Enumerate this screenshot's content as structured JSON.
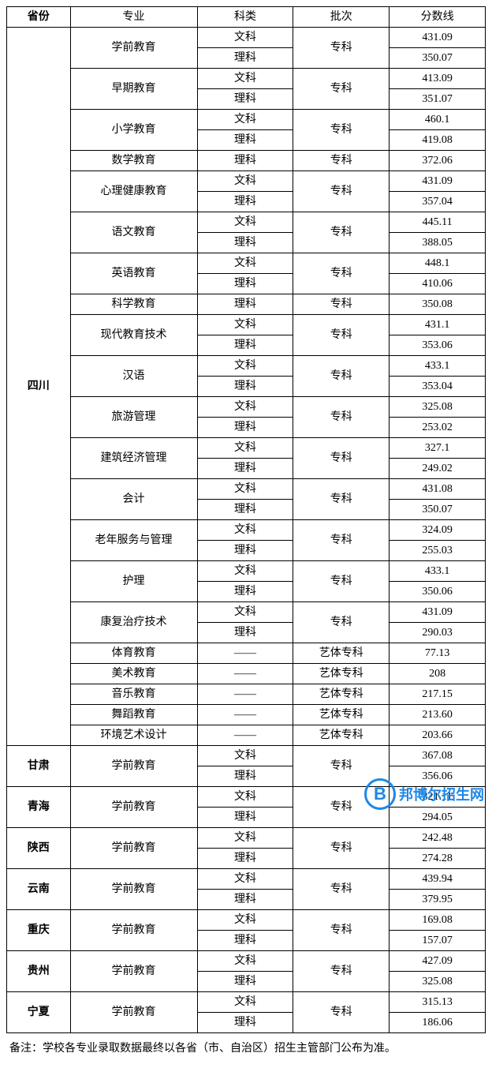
{
  "headers": {
    "province": "省份",
    "major": "专业",
    "subject": "科类",
    "batch": "批次",
    "score": "分数线"
  },
  "subjects": {
    "wen": "文科",
    "li": "理科",
    "dash": "——"
  },
  "batches": {
    "zhuanke": "专科",
    "yiti": "艺体专科"
  },
  "sichuan": {
    "name": "四川",
    "majors": {
      "xueqian": {
        "name": "学前教育",
        "wen": "431.09",
        "li": "350.07"
      },
      "zaoqi": {
        "name": "早期教育",
        "wen": "413.09",
        "li": "351.07"
      },
      "xiaoxue": {
        "name": "小学教育",
        "wen": "460.1",
        "li": "419.08"
      },
      "shuxue": {
        "name": "数学教育",
        "li": "372.06"
      },
      "xinli": {
        "name": "心理健康教育",
        "wen": "431.09",
        "li": "357.04"
      },
      "yuwen": {
        "name": "语文教育",
        "wen": "445.11",
        "li": "388.05"
      },
      "yingyu": {
        "name": "英语教育",
        "wen": "448.1",
        "li": "410.06"
      },
      "kexue": {
        "name": "科学教育",
        "li": "350.08"
      },
      "xiandai": {
        "name": "现代教育技术",
        "wen": "431.1",
        "li": "353.06"
      },
      "hanyu": {
        "name": "汉语",
        "wen": "433.1",
        "li": "353.04"
      },
      "lvyou": {
        "name": "旅游管理",
        "wen": "325.08",
        "li": "253.02"
      },
      "jianzhu": {
        "name": "建筑经济管理",
        "wen": "327.1",
        "li": "249.02"
      },
      "kuaiji": {
        "name": "会计",
        "wen": "431.08",
        "li": "350.07"
      },
      "laonian": {
        "name": "老年服务与管理",
        "wen": "324.09",
        "li": "255.03"
      },
      "huli": {
        "name": "护理",
        "wen": "433.1",
        "li": "350.06"
      },
      "kangfu": {
        "name": "康复治疗技术",
        "wen": "431.09",
        "li": "290.03"
      },
      "tiyu": {
        "name": "体育教育",
        "score": "77.13"
      },
      "meishu": {
        "name": "美术教育",
        "score": "208"
      },
      "yinyue": {
        "name": "音乐教育",
        "score": "217.15"
      },
      "wudao": {
        "name": "舞蹈教育",
        "score": "213.60"
      },
      "huanjing": {
        "name": "环境艺术设计",
        "score": "203.66"
      }
    }
  },
  "others": {
    "gansu": {
      "name": "甘肃",
      "major": "学前教育",
      "wen": "367.08",
      "li": "356.06"
    },
    "qinghai": {
      "name": "青海",
      "major": "学前教育",
      "wen": "321.11",
      "li": "294.05"
    },
    "shanxi": {
      "name": "陕西",
      "major": "学前教育",
      "wen": "242.48",
      "li": "274.28"
    },
    "yunnan": {
      "name": "云南",
      "major": "学前教育",
      "wen": "439.94",
      "li": "379.95"
    },
    "chongqing": {
      "name": "重庆",
      "major": "学前教育",
      "wen": "169.08",
      "li": "157.07"
    },
    "guizhou": {
      "name": "贵州",
      "major": "学前教育",
      "wen": "427.09",
      "li": "325.08"
    },
    "ningxia": {
      "name": "宁夏",
      "major": "学前教育",
      "wen": "315.13",
      "li": "186.06"
    }
  },
  "note": "备注：学校各专业录取数据最终以各省（市、自治区）招生主管部门公布为准。",
  "watermark": {
    "letter": "B",
    "text": "邦博尔招生网"
  },
  "styles": {
    "border_color": "#000000",
    "background_color": "#ffffff",
    "font_size": 14,
    "watermark_color": "#1e88e5"
  }
}
